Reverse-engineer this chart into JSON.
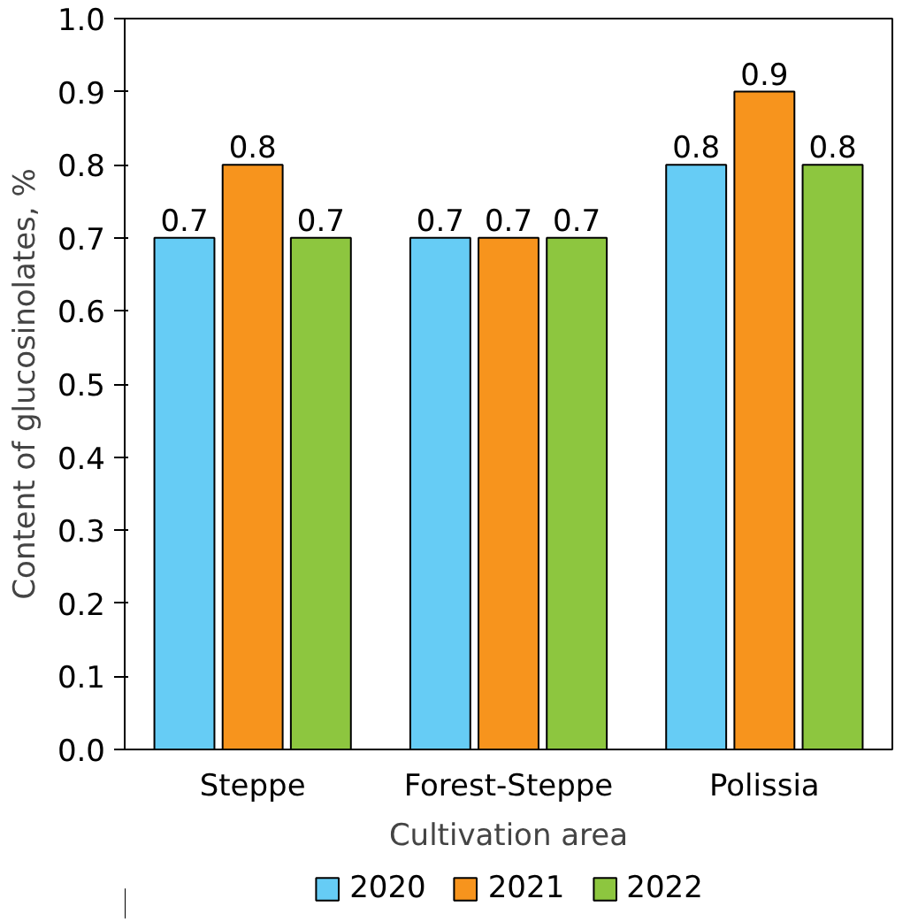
{
  "chart_data": {
    "type": "bar",
    "xlabel": "Cultivation area",
    "ylabel": "Content of glucosinolates, %",
    "categories": [
      "Steppe",
      "Forest-Steppe",
      "Polissia"
    ],
    "series": [
      {
        "name": "2020",
        "color": "#66ccf5",
        "values": [
          0.7,
          0.7,
          0.8
        ]
      },
      {
        "name": "2021",
        "color": "#f7941d",
        "values": [
          0.8,
          0.7,
          0.9
        ]
      },
      {
        "name": "2022",
        "color": "#8dc63f",
        "values": [
          0.7,
          0.7,
          0.8
        ]
      }
    ],
    "ylim": [
      0,
      1
    ],
    "yticks": [
      {
        "value": 0,
        "label": "0.0"
      },
      0.1,
      0.2,
      0.3,
      0.4,
      0.5,
      0.6,
      0.7,
      0.8,
      0.9,
      {
        "value": 1,
        "label": "1.0"
      }
    ],
    "data_labels": true,
    "legend": "bottom",
    "grid": false
  }
}
